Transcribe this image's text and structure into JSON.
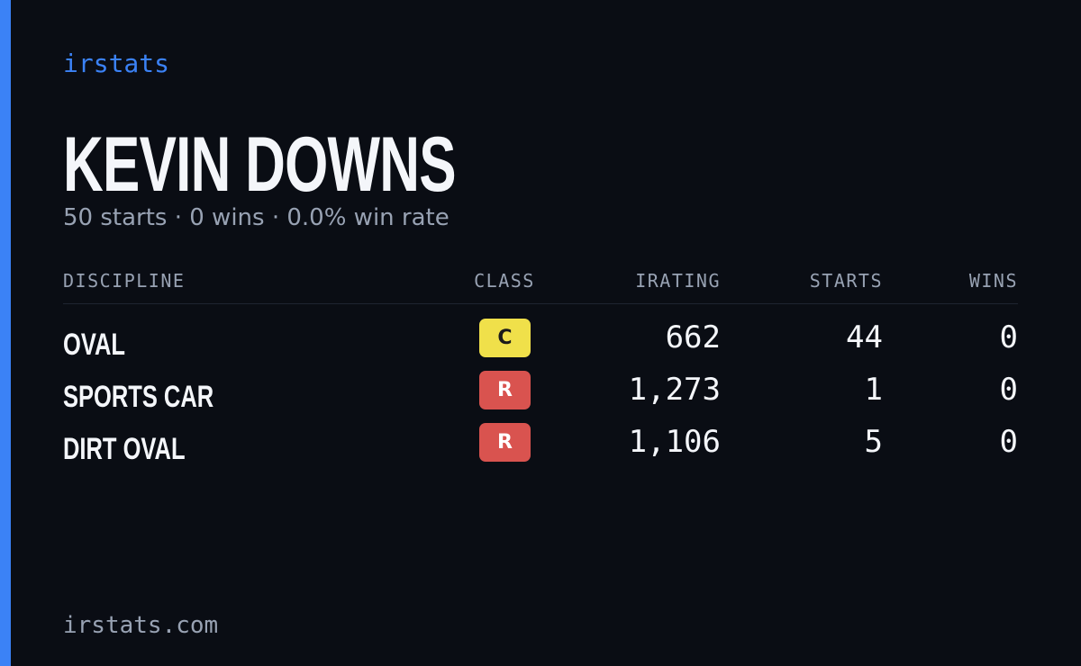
{
  "brand": "irstats",
  "driver": {
    "name": "KEVIN DOWNS",
    "summary": "50 starts · 0 wins · 0.0% win rate"
  },
  "table": {
    "headers": [
      "DISCIPLINE",
      "CLASS",
      "IRATING",
      "STARTS",
      "WINS"
    ],
    "rows": [
      {
        "discipline": "OVAL",
        "class": "C",
        "class_color": "#f0e04a",
        "class_text_color": "#1a1a1a",
        "irating": "662",
        "starts": "44",
        "wins": "0"
      },
      {
        "discipline": "SPORTS CAR",
        "class": "R",
        "class_color": "#d9534f",
        "class_text_color": "#ffffff",
        "irating": "1,273",
        "starts": "1",
        "wins": "0"
      },
      {
        "discipline": "DIRT OVAL",
        "class": "R",
        "class_color": "#d9534f",
        "class_text_color": "#ffffff",
        "irating": "1,106",
        "starts": "5",
        "wins": "0"
      }
    ]
  },
  "footer": "irstats.com"
}
